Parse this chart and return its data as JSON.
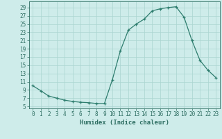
{
  "x": [
    0,
    1,
    2,
    3,
    4,
    5,
    6,
    7,
    8,
    9,
    10,
    11,
    12,
    13,
    14,
    15,
    16,
    17,
    18,
    19,
    20,
    21,
    22,
    23
  ],
  "y": [
    10.0,
    8.8,
    7.5,
    7.0,
    6.5,
    6.2,
    6.0,
    5.9,
    5.7,
    5.7,
    11.5,
    18.5,
    23.5,
    25.0,
    26.2,
    28.2,
    28.7,
    29.0,
    29.2,
    26.7,
    21.0,
    16.2,
    13.8,
    12.0
  ],
  "line_color": "#2e7d6e",
  "marker": "+",
  "marker_size": 3.5,
  "marker_lw": 0.9,
  "line_width": 0.9,
  "bg_color": "#ceecea",
  "grid_color": "#aad4d0",
  "xlabel": "Humidex (Indice chaleur)",
  "xlim": [
    -0.5,
    23.5
  ],
  "ylim": [
    4.5,
    30.5
  ],
  "yticks": [
    5,
    7,
    9,
    11,
    13,
    15,
    17,
    19,
    21,
    23,
    25,
    27,
    29
  ],
  "xticks": [
    0,
    1,
    2,
    3,
    4,
    5,
    6,
    7,
    8,
    9,
    10,
    11,
    12,
    13,
    14,
    15,
    16,
    17,
    18,
    19,
    20,
    21,
    22,
    23
  ],
  "font_color": "#2e6e62",
  "label_fontsize": 6.5,
  "tick_fontsize": 5.5
}
